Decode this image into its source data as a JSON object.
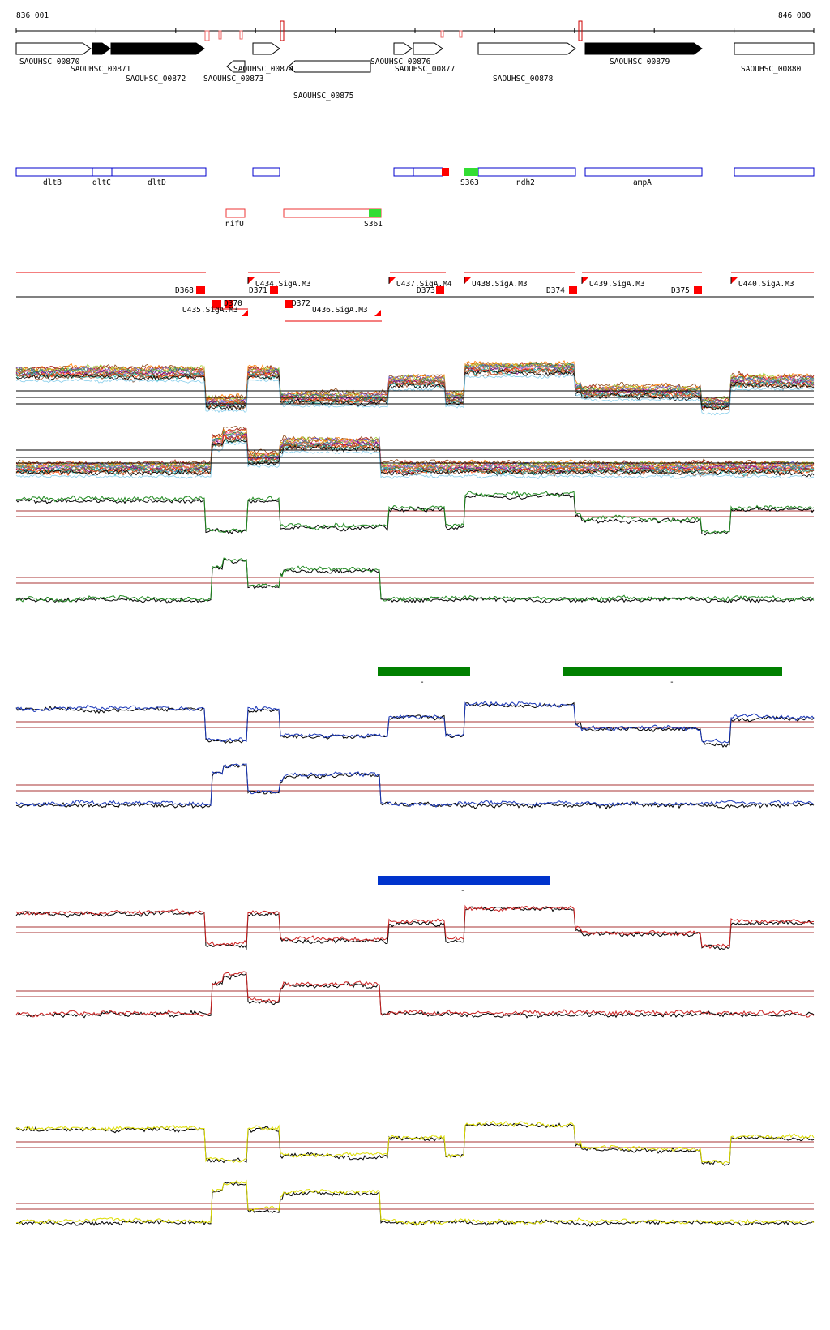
{
  "ruler": {
    "start_label": "836 001",
    "end_label": "846 000"
  },
  "colors": {
    "gene_track": "#0000cc",
    "srna_track": "#ee3333",
    "srna_box": "#33dd33",
    "segment_red": "#ff0000",
    "block_green": "#008000",
    "block_blue": "#0033cc",
    "threshold": "#aa3333",
    "trace_green": "#228b22",
    "trace_blue": "#1a37b8",
    "trace_red": "#cc2222",
    "trace_yellow": "#dddd00"
  },
  "genes": [
    {
      "label": "SAOUHSC_00870",
      "strand": "+",
      "filled": false
    },
    {
      "label": "SAOUHSC_00871",
      "strand": "+",
      "filled": true
    },
    {
      "label": "SAOUHSC_00872",
      "strand": "+",
      "filled": true
    },
    {
      "label": "SAOUHSC_00873",
      "strand": "-",
      "filled": false
    },
    {
      "label": "SAOUHSC_00874",
      "strand": "+",
      "filled": false
    },
    {
      "label": "SAOUHSC_00875",
      "strand": "-",
      "filled": false
    },
    {
      "label": "SAOUHSC_00876",
      "strand": "+",
      "filled": false
    },
    {
      "label": "SAOUHSC_00877",
      "strand": "+",
      "filled": false
    },
    {
      "label": "SAOUHSC_00878",
      "strand": "+",
      "filled": false
    },
    {
      "label": "SAOUHSC_00879",
      "strand": "+",
      "filled": true
    },
    {
      "label": "SAOUHSC_00880",
      "strand": "+",
      "filled": false
    }
  ],
  "annotation_track": [
    {
      "label": "dltB"
    },
    {
      "label": "dltC"
    },
    {
      "label": "dltD"
    },
    {
      "label": "S363"
    },
    {
      "label": "ndh2"
    },
    {
      "label": "ampA"
    }
  ],
  "srna_track": [
    {
      "label": "nifU"
    },
    {
      "label": "S361"
    }
  ],
  "segments": [
    {
      "label": "D368"
    },
    {
      "label": "U434.SigA.M3"
    },
    {
      "label": "D371"
    },
    {
      "label": "D370"
    },
    {
      "label": "U435.SigA.M3"
    },
    {
      "label": "D372"
    },
    {
      "label": "U436.SigA.M3"
    },
    {
      "label": "U437.SigA.M4"
    },
    {
      "label": "D373"
    },
    {
      "label": "U438.SigA.M3"
    },
    {
      "label": "D374"
    },
    {
      "label": "U439.SigA.M3"
    },
    {
      "label": "D375"
    },
    {
      "label": "U440.SigA.M3"
    }
  ],
  "block_labels": {
    "green_a": "-",
    "green_b": "-",
    "blue": "-"
  }
}
